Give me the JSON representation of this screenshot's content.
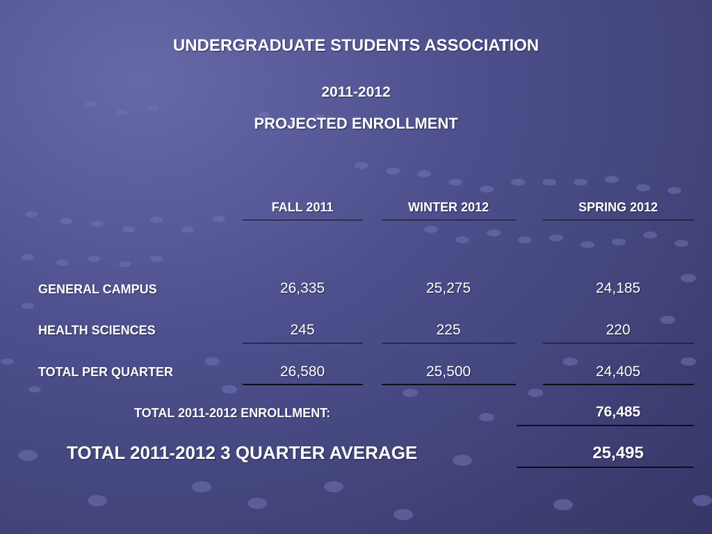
{
  "header": {
    "org": "UNDERGRADUATE STUDENTS ASSOCIATION",
    "year": "2011-2012",
    "subtitle": "PROJECTED ENROLLMENT"
  },
  "table": {
    "columns": [
      "FALL 2011",
      "WINTER 2012",
      "SPRING 2012"
    ],
    "rows": [
      {
        "label": "GENERAL CAMPUS",
        "values": [
          "26,335",
          "25,275",
          "24,185"
        ]
      },
      {
        "label": "HEALTH SCIENCES",
        "values": [
          "245",
          "225",
          "220"
        ]
      },
      {
        "label": "TOTAL PER QUARTER",
        "values": [
          "26,580",
          "25,500",
          "24,405"
        ]
      }
    ]
  },
  "totals": {
    "enrollment_label": "TOTAL 2011-2012 ENROLLMENT:",
    "enrollment_value": "76,485",
    "average_label": "TOTAL 2011-2012 3 QUARTER AVERAGE",
    "average_value": "25,495"
  },
  "colors": {
    "background": "#4e508e",
    "text": "#ffffff",
    "rule": "#0d0d1a"
  }
}
